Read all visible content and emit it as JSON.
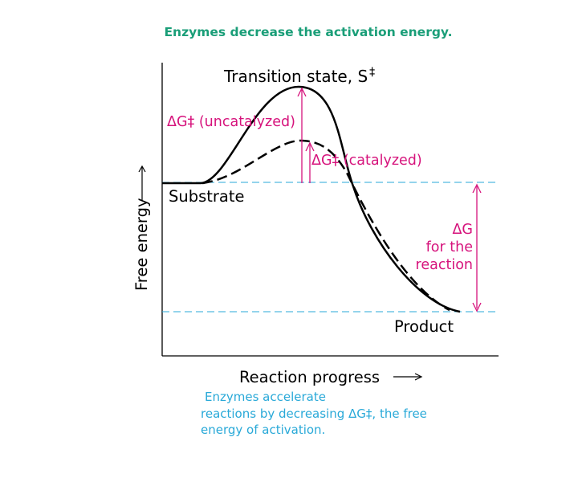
{
  "title": "Enzymes decrease the activation energy.",
  "diagram": {
    "y_axis_label": "Free energy",
    "x_axis_label": "Reaction progress",
    "transition_state_label": "Transition state, S",
    "transition_state_symbol": "‡",
    "uncatalyzed_label": "ΔG‡ (uncatalyzed)",
    "catalyzed_label": "ΔG‡ (catalyzed)",
    "substrate_label": "Substrate",
    "product_label": "Product",
    "delta_g_lines": [
      "ΔG",
      "for the",
      "reaction"
    ],
    "colors": {
      "title": "#1a9e78",
      "annotation": "#d6137c",
      "dashed_guide": "#29a9d8",
      "caption": "#29a9d8",
      "curve": "#000000"
    }
  },
  "caption": {
    "lines": [
      "Enzymes accelerate",
      "reactions by decreasing ΔG‡, the free",
      "energy of activation."
    ]
  }
}
